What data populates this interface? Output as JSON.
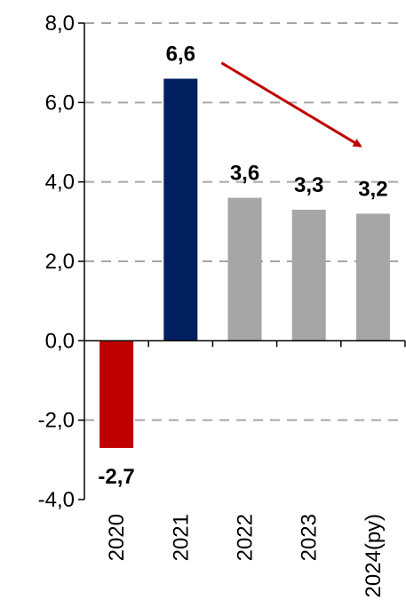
{
  "chart_data": {
    "type": "bar",
    "categories": [
      "2020",
      "2021",
      "2022",
      "2023",
      "2024(ру)"
    ],
    "values": [
      -2.7,
      6.6,
      3.6,
      3.3,
      3.2
    ],
    "value_labels": [
      "-2,7",
      "6,6",
      "3,6",
      "3,3",
      "3,2"
    ],
    "bar_colors": [
      "#C00000",
      "#002060",
      "#A6A6A6",
      "#A6A6A6",
      "#A6A6A6"
    ],
    "y_ticks": [
      8,
      6,
      4,
      2,
      0,
      -2,
      -4
    ],
    "y_tick_labels": [
      "8,0",
      "6,0",
      "4,0",
      "2,0",
      "0,0",
      "-2,0",
      "-4,0"
    ],
    "ylim": [
      -4,
      8
    ],
    "grid": true,
    "grid_color": "#A6A6A6",
    "annotation": {
      "type": "arrow",
      "from": {
        "category": "2021",
        "value": 7.0
      },
      "to": {
        "category": "2024(ру)",
        "value": 4.9
      },
      "color": "#C00000"
    }
  }
}
